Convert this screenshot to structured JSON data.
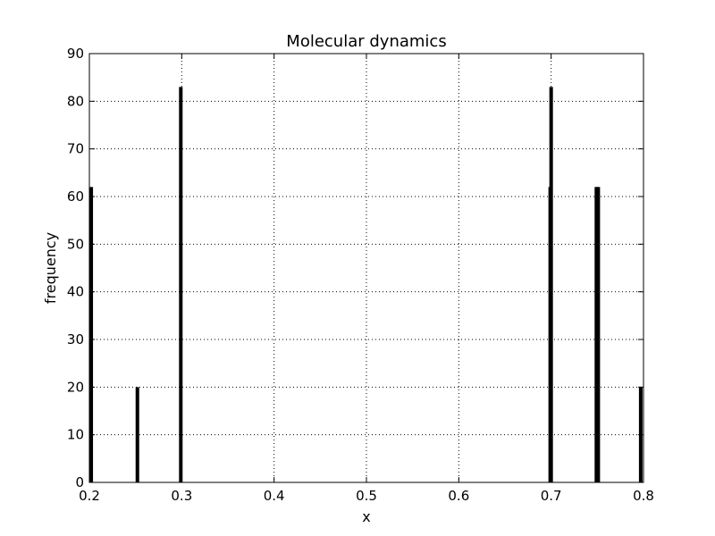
{
  "chart_data": {
    "type": "bar",
    "title": "Molecular dynamics",
    "xlabel": "x",
    "ylabel": "frequency",
    "xlim": [
      0.2,
      0.8
    ],
    "ylim": [
      0,
      90
    ],
    "grid": true,
    "grid_style": "dotted",
    "bar_color": "#000000",
    "xticks": [
      "0.2",
      "0.3",
      "0.4",
      "0.5",
      "0.6",
      "0.7",
      "0.8"
    ],
    "yticks": [
      "0",
      "10",
      "20",
      "30",
      "40",
      "50",
      "60",
      "70",
      "80",
      "90"
    ],
    "bars": [
      {
        "x": 0.202,
        "value": 62
      },
      {
        "x": 0.252,
        "value": 20
      },
      {
        "x": 0.299,
        "value": 83
      },
      {
        "x": 0.699,
        "value": 62
      },
      {
        "x": 0.7,
        "value": 83
      },
      {
        "x": 0.749,
        "value": 62
      },
      {
        "x": 0.751,
        "value": 62
      },
      {
        "x": 0.797,
        "value": 20
      }
    ]
  }
}
